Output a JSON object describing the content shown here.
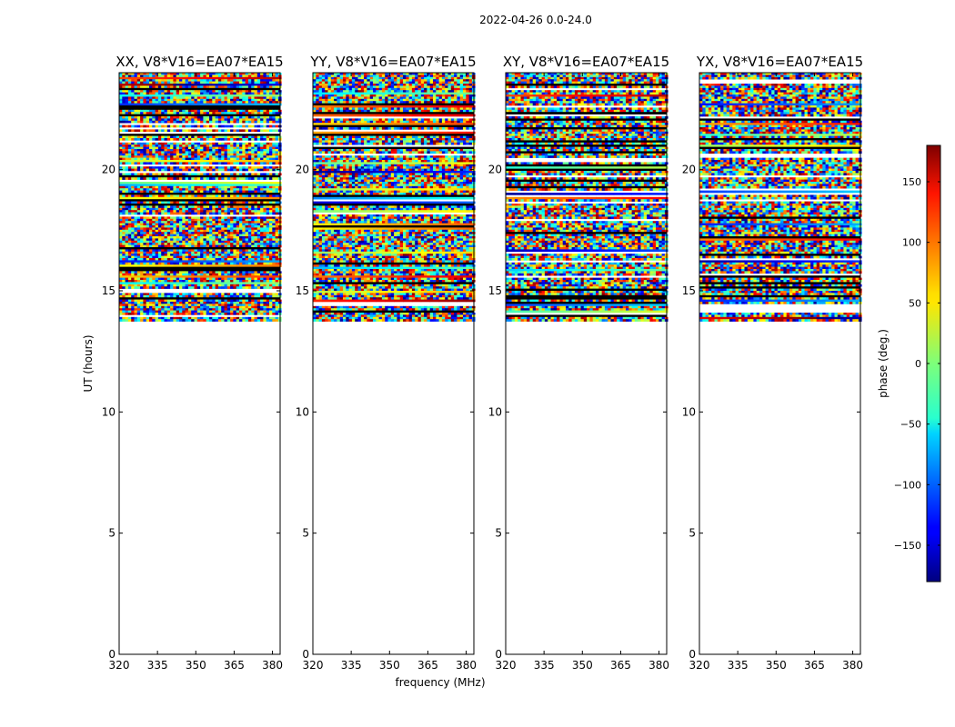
{
  "suptitle": "2022-04-26 0.0-24.0",
  "chart_data": {
    "type": "heatmap",
    "description_units": "UT hours (y) vs frequency MHz (x), color = visibility phase in degrees",
    "panels": [
      {
        "title": "XX, V8*V16=EA07*EA15"
      },
      {
        "title": "YY, V8*V16=EA07*EA15"
      },
      {
        "title": "XY, V8*V16=EA07*EA15"
      },
      {
        "title": "YX, V8*V16=EA07*EA15"
      }
    ],
    "xlabel": "frequency (MHz)",
    "ylabel": "UT (hours)",
    "xlim": [
      320,
      383
    ],
    "xticks": [
      320,
      335,
      350,
      365,
      380
    ],
    "ylim": [
      0,
      24
    ],
    "yticks": [
      0,
      5,
      10,
      15,
      20
    ],
    "data_ut_range": [
      13.8,
      24.0
    ],
    "empty_ut_range": [
      0,
      13.8
    ],
    "colorbar": {
      "label": "phase (deg.)",
      "range": [
        -180,
        180
      ],
      "ticks": [
        -150,
        -100,
        -50,
        0,
        50,
        100,
        150
      ],
      "colormap": "jet"
    }
  },
  "tick_labels": {
    "x": [
      "320",
      "335",
      "350",
      "365",
      "380"
    ],
    "y": [
      "0",
      "5",
      "10",
      "15",
      "20"
    ],
    "cbar": [
      "−150",
      "−100",
      "−50",
      "0",
      "50",
      "100",
      "150"
    ]
  }
}
